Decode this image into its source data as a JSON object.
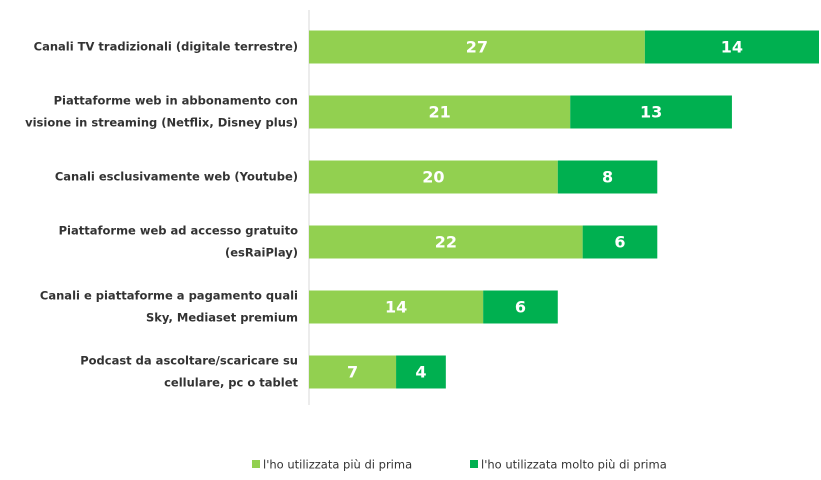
{
  "chart_data": {
    "type": "bar",
    "orientation": "horizontal",
    "stacked": true,
    "categories": [
      [
        "Canali TV tradizionali (digitale terrestre)"
      ],
      [
        "Piattaforme web in abbonamento con",
        "visione in streaming (Netflix, Disney plus)"
      ],
      [
        "Canali esclusivamente web (Youtube)"
      ],
      [
        "Piattaforme web ad accesso gratuito",
        "(esRaiPlay)"
      ],
      [
        "Canali e piattaforme a pagamento quali",
        "Sky, Mediaset premium"
      ],
      [
        "Podcast da ascoltare/scaricare su",
        "cellulare, pc o tablet"
      ]
    ],
    "series": [
      {
        "name": "l'ho utilizzata più di prima",
        "color": "#92d050",
        "values": [
          27,
          21,
          20,
          22,
          14,
          7
        ]
      },
      {
        "name": "l'ho utilizzata molto più di prima",
        "color": "#00b050",
        "values": [
          14,
          13,
          8,
          6,
          6,
          4
        ]
      }
    ],
    "legend": "bottom"
  }
}
